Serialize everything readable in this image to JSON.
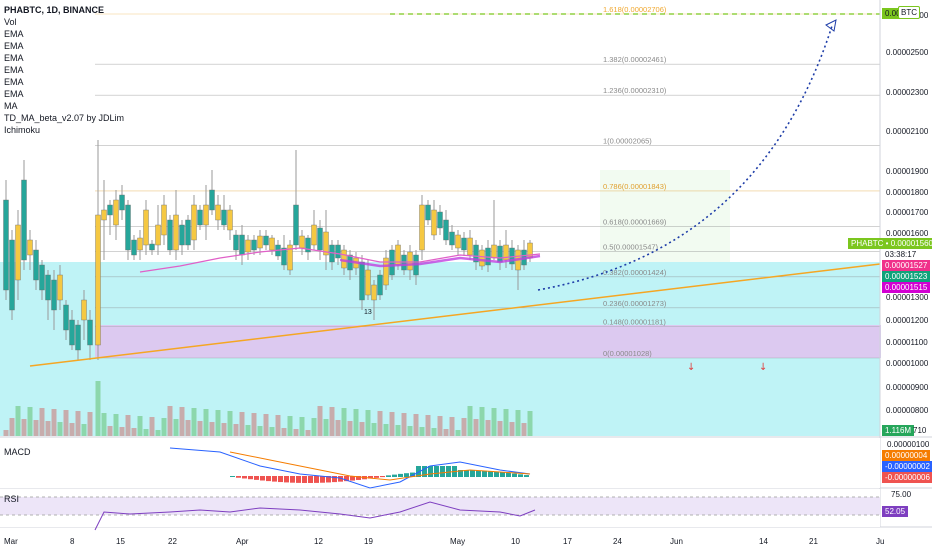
{
  "header": {
    "symbol_line": "PHABTC, 1D, BINANCE",
    "indicators": [
      "Vol",
      "EMA",
      "EMA",
      "EMA",
      "EMA",
      "EMA",
      "EMA",
      "MA",
      "TD_MA_beta_v2.07 by JDLim",
      "Ichimoku"
    ]
  },
  "fib_levels": [
    {
      "label": "1.618(0.00002706)",
      "value": 2.706e-05,
      "color": "#f0a830"
    },
    {
      "label": "1.382(0.00002461)",
      "value": 2.461e-05,
      "color": "#8a8a8a"
    },
    {
      "label": "1.236(0.00002310)",
      "value": 2.31e-05,
      "color": "#8a8a8a"
    },
    {
      "label": "1(0.00002065)",
      "value": 2.065e-05,
      "color": "#8a8a8a"
    },
    {
      "label": "0.786(0.00001843)",
      "value": 1.843e-05,
      "color": "#e0a030"
    },
    {
      "label": "0.618(0.00001669)",
      "value": 1.669e-05,
      "color": "#8a8a8a"
    },
    {
      "label": "0.5(0.00001547)",
      "value": 1.547e-05,
      "color": "#8a8a8a"
    },
    {
      "label": "0.382(0.00001424)",
      "value": 1.424e-05,
      "color": "#8a8a8a"
    },
    {
      "label": "0.236(0.00001273)",
      "value": 1.273e-05,
      "color": "#8a8a8a"
    },
    {
      "label": "0.148(0.00001181)",
      "value": 1.181e-05,
      "color": "#8a8a8a"
    },
    {
      "label": "0(0.00001028)",
      "value": 1.028e-05,
      "color": "#8a8a8a"
    }
  ],
  "price_axis": {
    "ticks": [
      "0.00002700",
      "0.00002500",
      "0.00002300",
      "0.00002100",
      "0.00001900",
      "0.00001800",
      "0.00001700",
      "0.00001600",
      "0.00001300",
      "0.00001200",
      "0.00001100",
      "0.00001000",
      "0.00000900",
      "0.00000800"
    ],
    "target_label": "0.00",
    "target_label2": "62",
    "btc_badge": "BTC",
    "current_tag": "PHABTC • 0.00001560",
    "countdown": "03:38:17",
    "ema_tag1": "0.00001527",
    "ema_tag2": "0.00001523",
    "ma_tag": "0.00001515",
    "vol_tag": "1.116M",
    "vol_tick": "710"
  },
  "macd": {
    "label": "MACD",
    "ticks": [
      "0.00000100"
    ],
    "tag1": "0.00000004",
    "tag2": "-0.00000002",
    "tag3": "-0.00000006"
  },
  "rsi": {
    "label": "RSI",
    "tick": "75.00",
    "tag": "52.05"
  },
  "time_axis": [
    "Mar",
    "8",
    "15",
    "22",
    "Apr",
    "12",
    "19",
    "May",
    "10",
    "17",
    "24",
    "Jun",
    "14",
    "21",
    "Ju"
  ],
  "colors": {
    "up": "#f5c842",
    "down": "#26a69a",
    "cloud": "#d8c8ee",
    "cyan_bg": "#bff3f6",
    "trend": "#f5a623",
    "target": "#7bc61e",
    "price_tag": "#7bc61e",
    "ema_tag1": "#f0308a",
    "ema_tag2": "#0fa37a",
    "ma_tag": "#d200d2"
  }
}
